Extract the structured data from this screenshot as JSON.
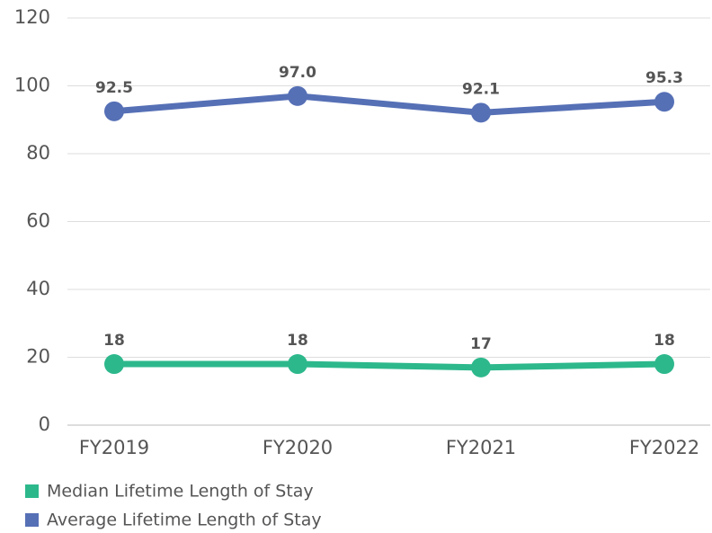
{
  "chart_data": {
    "type": "line",
    "categories": [
      "FY2019",
      "FY2020",
      "FY2021",
      "FY2022"
    ],
    "series": [
      {
        "name": "Median Lifetime Length of Stay",
        "color": "#2db88c",
        "values": [
          18,
          18,
          17,
          18
        ]
      },
      {
        "name": "Average Lifetime Length of Stay",
        "color": "#5670b6",
        "values": [
          92.5,
          97.0,
          92.1,
          95.3
        ],
        "value_labels": [
          "92.5",
          "97.0",
          "92.1",
          "95.3"
        ]
      }
    ],
    "ylim": [
      0,
      120
    ],
    "yticks": [
      0,
      20,
      40,
      60,
      80,
      100,
      120
    ],
    "grid": true,
    "legend": "bottom"
  }
}
